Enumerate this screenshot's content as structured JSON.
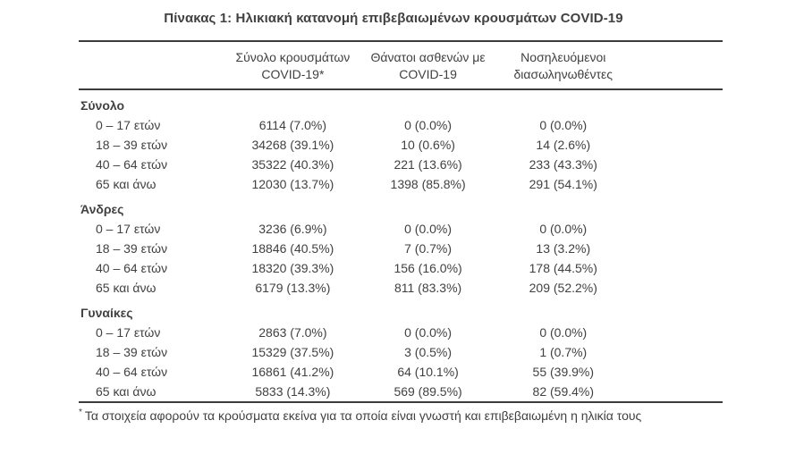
{
  "title": "Πίνακας 1: Ηλικιακή κατανομή επιβεβαιωμένων κρουσμάτων COVID-19",
  "chart_data": {
    "type": "table",
    "title": "Πίνακας 1: Ηλικιακή κατανομή επιβεβαιωμένων κρουσμάτων COVID-19",
    "columns": [
      "Σύνολο κρουσμάτων\nCOVID-19*",
      "Θάνατοι ασθενών με\nCOVID-19",
      "Νοσηλευόμενοι\nδιασωληνωθέντες"
    ],
    "sections": [
      {
        "label": "Σύνολο",
        "rows": [
          {
            "label": "0 – 17 ετών",
            "cells": [
              "6114 (7.0%)",
              "0 (0.0%)",
              "0 (0.0%)"
            ]
          },
          {
            "label": "18 – 39 ετών",
            "cells": [
              "34268 (39.1%)",
              "10 (0.6%)",
              "14 (2.6%)"
            ]
          },
          {
            "label": "40 – 64 ετών",
            "cells": [
              "35322 (40.3%)",
              "221 (13.6%)",
              "233 (43.3%)"
            ]
          },
          {
            "label": "65 και άνω",
            "cells": [
              "12030 (13.7%)",
              "1398 (85.8%)",
              "291 (54.1%)"
            ]
          }
        ]
      },
      {
        "label": "Άνδρες",
        "rows": [
          {
            "label": "0 – 17 ετών",
            "cells": [
              "3236 (6.9%)",
              "0 (0.0%)",
              "0 (0.0%)"
            ]
          },
          {
            "label": "18 – 39 ετών",
            "cells": [
              "18846 (40.5%)",
              "7 (0.7%)",
              "13 (3.2%)"
            ]
          },
          {
            "label": "40 – 64 ετών",
            "cells": [
              "18320 (39.3%)",
              "156 (16.0%)",
              "178 (44.5%)"
            ]
          },
          {
            "label": "65 και άνω",
            "cells": [
              "6179 (13.3%)",
              "811 (83.3%)",
              "209 (52.2%)"
            ]
          }
        ]
      },
      {
        "label": "Γυναίκες",
        "rows": [
          {
            "label": "0 – 17 ετών",
            "cells": [
              "2863 (7.0%)",
              "0 (0.0%)",
              "0 (0.0%)"
            ]
          },
          {
            "label": "18 – 39 ετών",
            "cells": [
              "15329 (37.5%)",
              "3 (0.5%)",
              "1 (0.7%)"
            ]
          },
          {
            "label": "40 – 64 ετών",
            "cells": [
              "16861 (41.2%)",
              "64 (10.1%)",
              "55 (39.9%)"
            ]
          },
          {
            "label": "65 και άνω",
            "cells": [
              "5833 (14.3%)",
              "569 (89.5%)",
              "82 (59.4%)"
            ]
          }
        ]
      }
    ],
    "footnote": {
      "marker": "*",
      "text": "Τα στοιχεία αφορούν τα κρούσματα εκείνα για τα οποία είναι γνωστή και επιβεβαιωμένη η ηλικία τους"
    }
  },
  "colors": {
    "text": "#414141",
    "rule": "#3c3c3c",
    "background": "#ffffff"
  }
}
